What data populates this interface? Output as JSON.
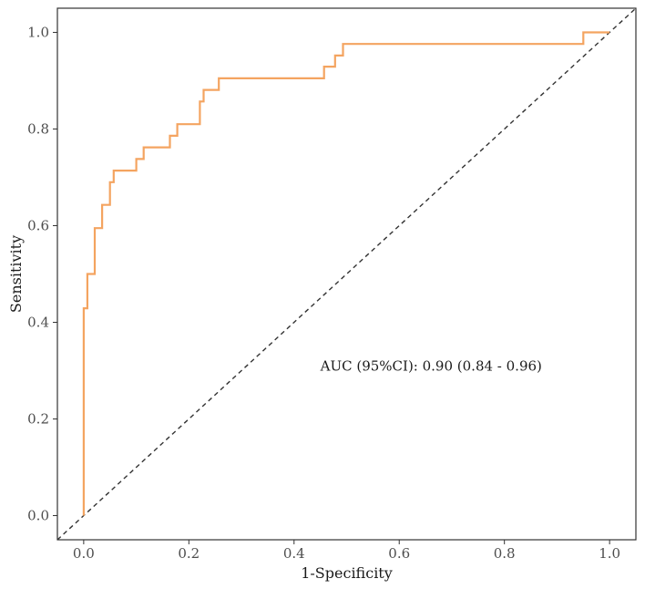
{
  "chart_data": {
    "type": "line",
    "title": "",
    "xlabel": "1-Specificity",
    "ylabel": "Sensitivity",
    "xlim": [
      -0.05,
      1.05
    ],
    "ylim": [
      -0.05,
      1.05
    ],
    "x_ticks": [
      "0.0",
      "0.2",
      "0.4",
      "0.6",
      "0.8",
      "1.0"
    ],
    "y_ticks": [
      "0.0",
      "0.2",
      "0.4",
      "0.6",
      "0.8",
      "1.0"
    ],
    "grid": false,
    "legend": "none",
    "annotation": "AUC (95%CI): 0.90 (0.84 - 0.96)",
    "annotation_position": {
      "x": 0.45,
      "y": 0.3
    },
    "colors": {
      "roc": "#F4A460",
      "reference": "#333333"
    },
    "series": [
      {
        "kind": "roc",
        "x": [
          0.0,
          0.0,
          0.007,
          0.007,
          0.021,
          0.021,
          0.035,
          0.035,
          0.05,
          0.05,
          0.057,
          0.057,
          0.1,
          0.1,
          0.114,
          0.114,
          0.164,
          0.164,
          0.178,
          0.178,
          0.221,
          0.221,
          0.228,
          0.228,
          0.257,
          0.257,
          0.457,
          0.457,
          0.478,
          0.478,
          0.493,
          0.493,
          0.95,
          0.95,
          1.0
        ],
        "y": [
          0.0,
          0.429,
          0.429,
          0.5,
          0.5,
          0.595,
          0.595,
          0.643,
          0.643,
          0.69,
          0.69,
          0.714,
          0.714,
          0.738,
          0.738,
          0.762,
          0.762,
          0.786,
          0.786,
          0.81,
          0.81,
          0.857,
          0.857,
          0.881,
          0.881,
          0.905,
          0.905,
          0.929,
          0.929,
          0.952,
          0.952,
          0.976,
          0.976,
          1.0,
          1.0
        ]
      },
      {
        "kind": "reference",
        "x": [
          -0.05,
          1.05
        ],
        "y": [
          -0.05,
          1.05
        ]
      }
    ]
  }
}
